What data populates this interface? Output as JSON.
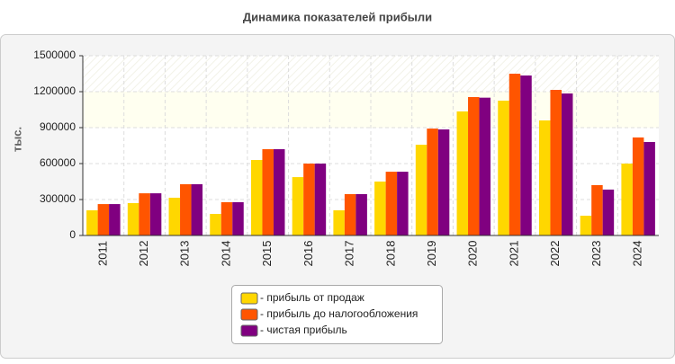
{
  "chart_data": {
    "type": "bar",
    "title": "Динамика показателей прибыли",
    "y_label": "тыс.",
    "categories": [
      "2011",
      "2012",
      "2013",
      "2014",
      "2015",
      "2016",
      "2017",
      "2018",
      "2019",
      "2020",
      "2021",
      "2022",
      "2023",
      "2024"
    ],
    "series": [
      {
        "name": "- прибыль от продаж",
        "color": "#ffd700",
        "values": [
          210000,
          270000,
          315000,
          180000,
          630000,
          487000,
          210000,
          450000,
          757000,
          1035000,
          1125000,
          960000,
          165000,
          600000
        ]
      },
      {
        "name": "- прибыль до налогообложения",
        "color": "#ff5500",
        "values": [
          262000,
          352000,
          428000,
          278000,
          720000,
          600000,
          345000,
          532000,
          892000,
          1155000,
          1350000,
          1215000,
          420000,
          818000
        ]
      },
      {
        "name": "- чистая прибыль",
        "color": "#800080",
        "values": [
          262000,
          352000,
          428000,
          278000,
          720000,
          600000,
          345000,
          532000,
          885000,
          1150000,
          1335000,
          1185000,
          383000,
          780000
        ]
      }
    ],
    "ylim": [
      0,
      1500000
    ],
    "yticks": [
      0,
      300000,
      600000,
      900000,
      1200000,
      1500000
    ],
    "grid": true
  }
}
